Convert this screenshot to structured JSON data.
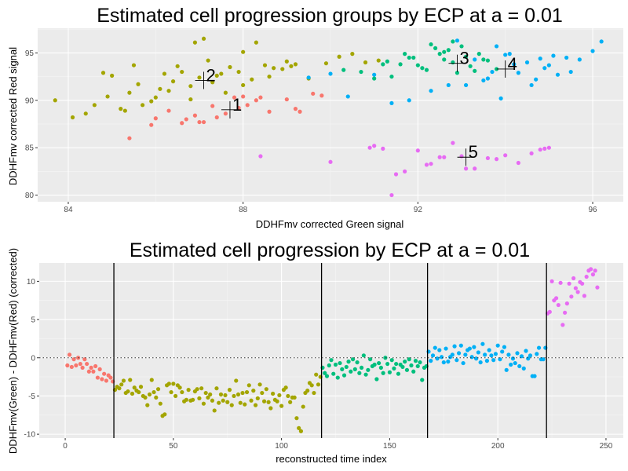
{
  "colors": {
    "panel_bg": "#EBEBEB",
    "grid_major": "#FFFFFF",
    "grid_minor": "#F5F5F5",
    "groups": [
      "#F8766D",
      "#A3A500",
      "#00BF7D",
      "#00B0F6",
      "#E76BF3"
    ]
  },
  "chart_data": [
    {
      "type": "scatter",
      "title": "Estimated cell progression groups by ECP at a = 0.01",
      "xlabel": "DDHFmv corrected Green signal",
      "ylabel": "DDHFmv corrected Red signal",
      "xlim": [
        83.3,
        96.7
      ],
      "ylim": [
        79.3,
        97.6
      ],
      "xticks": [
        84,
        88,
        92,
        96
      ],
      "yticks": [
        80,
        85,
        90,
        95
      ],
      "grid": true,
      "centroids": [
        {
          "label": "1",
          "x": 87.7,
          "y": 89.0
        },
        {
          "label": "2",
          "x": 87.1,
          "y": 92.1
        },
        {
          "label": "3",
          "x": 92.9,
          "y": 93.9
        },
        {
          "label": "4",
          "x": 94.0,
          "y": 93.3
        },
        {
          "label": "5",
          "x": 93.1,
          "y": 84.0
        }
      ],
      "series": [
        {
          "group": 1,
          "x": [
            85.4,
            85.9,
            86.3,
            86.6,
            86.9,
            87.1,
            87.3,
            87.6,
            87.8,
            88.0,
            88.3,
            88.6,
            89.0,
            89.2,
            89.6,
            89.8,
            87.0,
            86.0,
            88.4,
            87.9,
            89.3,
            86.7,
            88.1,
            87.4
          ],
          "y": [
            86.0,
            87.4,
            88.9,
            87.6,
            88.4,
            87.7,
            89.4,
            88.6,
            90.3,
            90.4,
            90.0,
            88.8,
            90.1,
            89.1,
            90.7,
            90.5,
            87.7,
            88.1,
            90.3,
            89.2,
            88.8,
            88.0,
            89.5,
            88.2
          ]
        },
        {
          "group": 2,
          "x": [
            83.7,
            84.1,
            84.4,
            84.6,
            84.9,
            85.2,
            85.4,
            85.6,
            85.9,
            86.1,
            86.4,
            86.6,
            86.8,
            87.0,
            87.2,
            87.5,
            87.7,
            88.0,
            88.2,
            88.5,
            88.7,
            89.0,
            89.2,
            89.5,
            89.9,
            90.2,
            90.5,
            90.8,
            91.1,
            86.9,
            87.9,
            88.3,
            87.4,
            86.3,
            85.7,
            88.9,
            85.0,
            86.5,
            87.1,
            88.6,
            85.3,
            84.8,
            86.0,
            87.6,
            89.1,
            86.8,
            88.0,
            85.5,
            87.3,
            86.2
          ],
          "y": [
            90.0,
            88.2,
            88.6,
            89.5,
            90.4,
            89.1,
            90.8,
            91.7,
            89.9,
            91.2,
            92.0,
            93.0,
            91.5,
            92.4,
            94.2,
            92.8,
            93.5,
            95.1,
            92.2,
            93.7,
            93.4,
            94.1,
            93.8,
            92.3,
            93.9,
            94.6,
            94.9,
            94.0,
            94.2,
            96.1,
            93.0,
            96.1,
            92.6,
            91.0,
            89.5,
            93.3,
            92.6,
            93.6,
            96.5,
            92.5,
            88.9,
            92.9,
            90.3,
            90.8,
            93.6,
            90.1,
            91.6,
            93.7,
            91.9,
            92.8
          ]
        },
        {
          "group": 3,
          "x": [
            90.3,
            90.7,
            91.0,
            91.3,
            91.6,
            91.9,
            92.2,
            92.5,
            92.7,
            93.0,
            93.2,
            93.4,
            93.6,
            93.8,
            92.4,
            92.8,
            91.8,
            92.0,
            93.1,
            92.6,
            91.4,
            92.9,
            92.1,
            93.3,
            92.3,
            91.7,
            93.5,
            92.6,
            91.2,
            92.8
          ],
          "y": [
            93.2,
            93.0,
            92.3,
            94.1,
            93.8,
            94.5,
            93.2,
            94.9,
            95.3,
            95.7,
            93.6,
            94.9,
            94.2,
            93.3,
            95.5,
            96.2,
            94.5,
            93.7,
            94.6,
            94.3,
            92.5,
            92.9,
            93.4,
            93.1,
            95.9,
            94.9,
            94.3,
            95.1,
            93.8,
            94.0
          ]
        },
        {
          "group": 4,
          "x": [
            89.5,
            90.0,
            90.4,
            91.0,
            91.4,
            91.8,
            92.3,
            92.7,
            93.1,
            93.5,
            93.9,
            94.2,
            94.5,
            94.8,
            95.1,
            95.4,
            95.7,
            96.0,
            96.2,
            94.3,
            94.9,
            95.2,
            93.8,
            94.0,
            93.3,
            94.6,
            95.5,
            93.6,
            94.1,
            92.9,
            94.7,
            95.0,
            93.7
          ],
          "y": [
            92.4,
            92.8,
            90.4,
            92.7,
            89.7,
            90.0,
            91.0,
            91.6,
            91.6,
            92.1,
            90.2,
            93.8,
            94.0,
            94.4,
            94.7,
            94.5,
            94.3,
            95.2,
            96.2,
            92.9,
            93.4,
            92.7,
            95.7,
            94.8,
            94.3,
            91.6,
            93.0,
            92.3,
            94.9,
            96.3,
            92.2,
            93.7,
            93.0
          ]
        },
        {
          "group": 5,
          "x": [
            88.4,
            90.0,
            91.0,
            91.2,
            91.5,
            91.7,
            92.0,
            92.3,
            92.5,
            92.8,
            93.0,
            93.3,
            93.6,
            93.8,
            94.0,
            94.3,
            94.6,
            94.8,
            95.0,
            92.6,
            93.1,
            94.9,
            91.4,
            92.2,
            90.9
          ],
          "y": [
            84.1,
            83.5,
            85.2,
            84.9,
            82.2,
            82.5,
            84.7,
            83.3,
            84.0,
            85.5,
            84.1,
            82.8,
            83.9,
            83.8,
            84.2,
            83.4,
            84.4,
            84.8,
            85.0,
            84.0,
            82.8,
            84.9,
            80.0,
            83.2,
            85.0
          ]
        }
      ]
    },
    {
      "type": "scatter",
      "title": "Estimated cell progression by ECP at a = 0.01",
      "xlabel": "reconstructed time index",
      "ylabel": "DDHFmv(Green) - DDHFmv(Red) (corrected)",
      "xlim": [
        -12,
        258
      ],
      "ylim": [
        -10.5,
        12.4
      ],
      "xticks": [
        0,
        50,
        100,
        150,
        200,
        250
      ],
      "yticks": [
        -10,
        -5,
        0,
        5,
        10
      ],
      "grid": true,
      "vlines": [
        22.5,
        118.5,
        167.5,
        222.5
      ],
      "hline": 0,
      "series": [
        {
          "group": 1,
          "x": [
            1,
            2,
            3,
            4,
            5,
            6,
            7,
            8,
            9,
            10,
            11,
            12,
            13,
            14,
            15,
            16,
            17,
            18,
            19,
            20,
            21,
            22
          ],
          "y": [
            -1.0,
            0.4,
            -1.2,
            -0.2,
            -1.0,
            0.0,
            -0.8,
            -1.3,
            -0.2,
            -0.8,
            -1.8,
            -1.3,
            -1.8,
            -1.1,
            -2.6,
            -1.5,
            -2.8,
            -2.1,
            -3.0,
            -2.3,
            -2.6,
            -3.1
          ]
        },
        {
          "group": 2,
          "x": [
            23,
            24,
            25,
            26,
            27,
            28,
            29,
            30,
            31,
            32,
            33,
            34,
            35,
            36,
            37,
            38,
            39,
            40,
            41,
            42,
            43,
            44,
            45,
            46,
            47,
            48,
            49,
            50,
            51,
            52,
            53,
            54,
            55,
            56,
            57,
            58,
            59,
            60,
            61,
            62,
            63,
            64,
            65,
            66,
            67,
            68,
            69,
            70,
            71,
            72,
            73,
            74,
            75,
            76,
            77,
            78,
            79,
            80,
            81,
            82,
            83,
            84,
            85,
            86,
            87,
            88,
            89,
            90,
            91,
            92,
            93,
            94,
            95,
            96,
            97,
            98,
            99,
            100,
            101,
            102,
            103,
            104,
            105,
            106,
            107,
            108,
            109,
            110,
            111,
            112,
            113,
            114,
            115,
            116,
            117,
            118
          ],
          "y": [
            -4.2,
            -3.8,
            -4.0,
            -3.5,
            -3.0,
            -4.6,
            -4.4,
            -2.9,
            -4.7,
            -3.9,
            -4.3,
            -4.5,
            -3.8,
            -5.0,
            -5.2,
            -6.2,
            -4.8,
            -2.9,
            -4.5,
            -5.2,
            -4.1,
            -6.0,
            -7.6,
            -7.4,
            -3.6,
            -3.4,
            -4.5,
            -3.4,
            -5.0,
            -3.6,
            -3.9,
            -4.5,
            -5.7,
            -5.5,
            -4.2,
            -5.6,
            -5.5,
            -4.4,
            -4.1,
            -5.3,
            -4.0,
            -6.0,
            -4.6,
            -5.2,
            -4.8,
            -5.6,
            -6.9,
            -4.0,
            -5.9,
            -4.8,
            -5.6,
            -4.9,
            -5.8,
            -4.2,
            -6.2,
            -5.0,
            -3.0,
            -4.8,
            -5.9,
            -4.6,
            -6.1,
            -4.5,
            -3.6,
            -5.6,
            -4.3,
            -6.2,
            -5.3,
            -3.5,
            -4.6,
            -5.7,
            -4.1,
            -5.8,
            -6.6,
            -4.7,
            -5.5,
            -5.7,
            -4.9,
            -6.3,
            -4.2,
            -3.9,
            -5.0,
            -5.8,
            -5.2,
            -5.2,
            -7.9,
            -9.2,
            -9.6,
            -6.4,
            -4.6,
            -4.3,
            -3.3,
            -3.6,
            -4.6,
            -2.2,
            -3.5,
            -2.5
          ]
        },
        {
          "group": 3,
          "x": [
            119,
            120,
            121,
            122,
            123,
            124,
            125,
            126,
            127,
            128,
            129,
            130,
            131,
            132,
            133,
            134,
            135,
            136,
            137,
            138,
            139,
            140,
            141,
            142,
            143,
            144,
            145,
            146,
            147,
            148,
            149,
            150,
            151,
            152,
            153,
            154,
            155,
            156,
            157,
            158,
            159,
            160,
            161,
            162,
            163,
            164,
            165,
            166,
            167
          ],
          "y": [
            -1.3,
            -2.0,
            -2.4,
            -1.0,
            -0.3,
            -2.1,
            -0.9,
            -2.6,
            -0.7,
            -1.5,
            -2.3,
            -1.2,
            -0.5,
            -1.8,
            -0.2,
            -1.5,
            -0.6,
            -2.0,
            -1.3,
            0.3,
            -2.2,
            -1.6,
            -0.2,
            -1.1,
            -0.9,
            -2.8,
            -0.7,
            -1.3,
            -2.0,
            0.0,
            -0.8,
            -1.9,
            -0.3,
            -1.4,
            -0.8,
            -2.1,
            -0.9,
            -1.2,
            -0.5,
            -1.6,
            -0.2,
            -1.0,
            -1.8,
            -0.4,
            -1.1,
            -0.6,
            -2.9,
            -1.3,
            -1.1
          ]
        },
        {
          "group": 4,
          "x": [
            168,
            169,
            170,
            171,
            172,
            173,
            174,
            175,
            176,
            177,
            178,
            179,
            180,
            181,
            182,
            183,
            184,
            185,
            186,
            187,
            188,
            189,
            190,
            191,
            192,
            193,
            194,
            195,
            196,
            197,
            198,
            199,
            200,
            201,
            202,
            203,
            204,
            205,
            206,
            207,
            208,
            209,
            210,
            211,
            212,
            213,
            214,
            215,
            216,
            217,
            218,
            219,
            220,
            221,
            222
          ],
          "y": [
            0.8,
            -0.4,
            0.3,
            1.3,
            -0.1,
            1.0,
            0.1,
            -0.6,
            1.2,
            -0.5,
            0.1,
            0.4,
            1.5,
            -0.3,
            0.6,
            1.6,
            -0.7,
            0.4,
            1.0,
            1.2,
            0.1,
            1.4,
            -0.1,
            0.7,
            -0.6,
            1.8,
            0.4,
            -0.4,
            1.0,
            0.3,
            -0.3,
            0.5,
            1.6,
            -0.2,
            0.8,
            1.4,
            -1.6,
            0.4,
            -0.9,
            -0.1,
            -0.7,
            0.6,
            -1.1,
            0.2,
            -1.4,
            0.9,
            -0.1,
            0.3,
            -2.4,
            -2.4,
            0.5,
            1.3,
            -0.2,
            -0.2,
            1.3
          ]
        },
        {
          "group": 5,
          "x": [
            223,
            224,
            225,
            226,
            227,
            228,
            229,
            230,
            231,
            232,
            233,
            234,
            235,
            236,
            237,
            238,
            239,
            240,
            241,
            242,
            243,
            244,
            245,
            246
          ],
          "y": [
            5.8,
            6.0,
            10.0,
            7.5,
            7.8,
            6.9,
            9.8,
            4.3,
            5.9,
            7.1,
            9.7,
            8.0,
            10.4,
            9.1,
            8.6,
            9.9,
            9.7,
            8.1,
            10.6,
            11.4,
            11.6,
            10.9,
            11.4,
            9.2
          ]
        }
      ]
    }
  ]
}
